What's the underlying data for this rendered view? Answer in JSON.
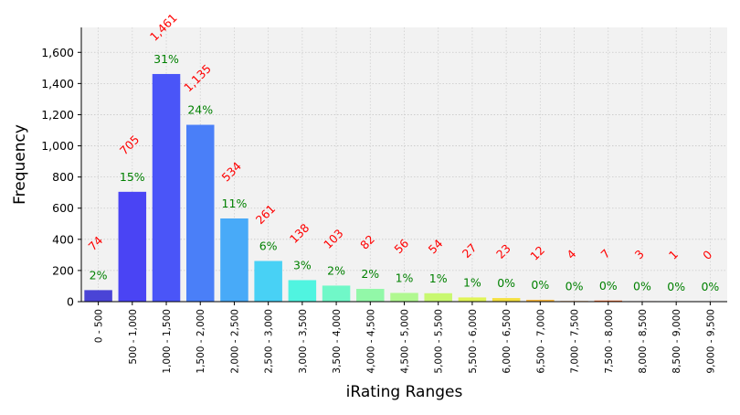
{
  "chart_data": {
    "type": "bar",
    "xlabel": "iRating Ranges",
    "ylabel": "Frequency",
    "ylim": [
      0,
      1760
    ],
    "yticks": [
      0,
      200,
      400,
      600,
      800,
      1000,
      1200,
      1400,
      1600
    ],
    "ytick_labels": [
      "0",
      "200",
      "400",
      "600",
      "800",
      "1,000",
      "1,200",
      "1,400",
      "1,600"
    ],
    "grid": true,
    "categories": [
      "0 - 500",
      "500 - 1,000",
      "1,000 - 1,500",
      "1,500 - 2,000",
      "2,000 - 2,500",
      "2,500 - 3,000",
      "3,000 - 3,500",
      "3,500 - 4,000",
      "4,000 - 4,500",
      "4,500 - 5,000",
      "5,000 - 5,500",
      "5,500 - 6,000",
      "6,000 - 6,500",
      "6,500 - 7,000",
      "7,000 - 7,500",
      "7,500 - 8,000",
      "8,000 - 8,500",
      "8,500 - 9,000",
      "9,000 - 9,500"
    ],
    "values": [
      74,
      705,
      1461,
      1135,
      534,
      261,
      138,
      103,
      82,
      56,
      54,
      27,
      23,
      12,
      4,
      7,
      3,
      1,
      0
    ],
    "count_labels": [
      "74",
      "705",
      "1,461",
      "1,135",
      "534",
      "261",
      "138",
      "103",
      "82",
      "56",
      "54",
      "27",
      "23",
      "12",
      "4",
      "7",
      "3",
      "1",
      "0"
    ],
    "percent_labels": [
      "2%",
      "15%",
      "31%",
      "24%",
      "11%",
      "6%",
      "3%",
      "2%",
      "2%",
      "1%",
      "1%",
      "1%",
      "0%",
      "0%",
      "0%",
      "0%",
      "0%",
      "0%",
      "0%"
    ],
    "bar_colors": [
      "#4a44d6",
      "#4a44f4",
      "#4a55f8",
      "#4a7ff8",
      "#48aaf8",
      "#48d1f5",
      "#50f4e0",
      "#70f8c8",
      "#92f8a8",
      "#b0f890",
      "#c8f870",
      "#e0f458",
      "#f4e040",
      "#f8b840",
      "#f89030",
      "#f86828",
      "#f84820",
      "#f83018",
      "#e82010"
    ],
    "count_label_color": "#ff0000",
    "percent_label_color": "#008000",
    "plot_background": "#f2f2f2"
  }
}
